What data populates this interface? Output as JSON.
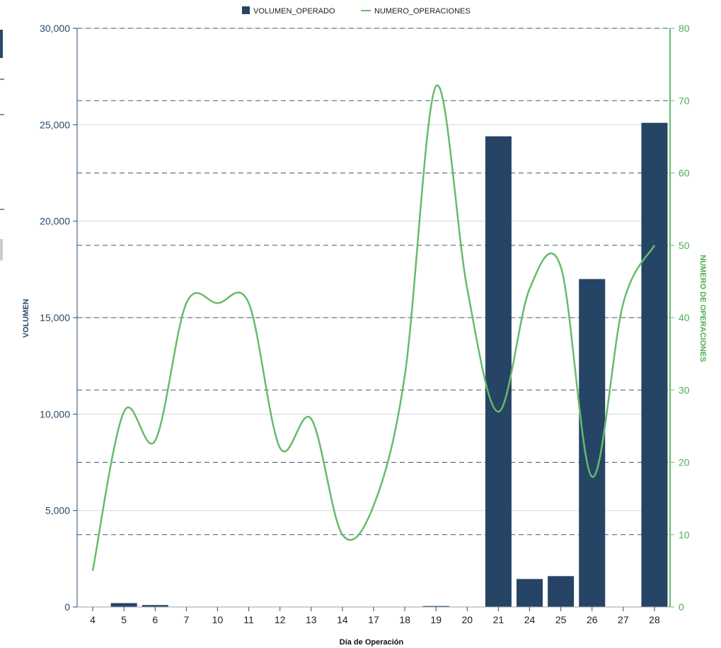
{
  "chart_data": {
    "type": "bar",
    "categories": [
      "4",
      "5",
      "6",
      "7",
      "10",
      "11",
      "12",
      "13",
      "14",
      "17",
      "18",
      "19",
      "20",
      "21",
      "24",
      "25",
      "26",
      "27",
      "28"
    ],
    "xlabel": "Día de Operación",
    "ylabel": "VOLUMEN",
    "y2label": "NUMERO DE OPERACIONES",
    "ylim": [
      0,
      30000
    ],
    "y2lim": [
      0,
      80
    ],
    "yticks": [
      "0",
      "5,000",
      "10,000",
      "15,000",
      "20,000",
      "25,000",
      "30,000"
    ],
    "y2ticks": [
      "0",
      "10",
      "20",
      "30",
      "40",
      "50",
      "60",
      "70",
      "80"
    ],
    "legend_position": "top",
    "grid": true,
    "series": [
      {
        "name": "VOLUMEN_OPERADO",
        "type": "bar",
        "axis": "left",
        "color": "#264465",
        "values": [
          0,
          200,
          100,
          0,
          0,
          0,
          0,
          0,
          0,
          0,
          0,
          50,
          0,
          24400,
          1450,
          1600,
          17000,
          0,
          25100
        ]
      },
      {
        "name": "NUMERO_OPERACIONES",
        "type": "line",
        "axis": "right",
        "color": "#66bb6a",
        "values": [
          5,
          27,
          23,
          42,
          42,
          42,
          22,
          26,
          10,
          14,
          32,
          72,
          44,
          27,
          44,
          47,
          18,
          42,
          50
        ]
      }
    ]
  }
}
